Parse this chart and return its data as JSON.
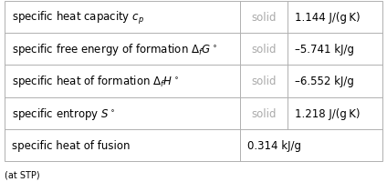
{
  "rows": [
    {
      "col1_plain": "specific heat capacity ",
      "col1_math": "$c_p$",
      "col2": "solid",
      "col3": "1.144 J/(g K)",
      "span_col2": false
    },
    {
      "col1_plain": "specific free energy of formation ",
      "col1_math": "$\\Delta_f G^\\circ$",
      "col2": "solid",
      "col3": "–5.741 kJ/g",
      "span_col2": false
    },
    {
      "col1_plain": "specific heat of formation ",
      "col1_math": "$\\Delta_f H^\\circ$",
      "col2": "solid",
      "col3": "–6.552 kJ/g",
      "span_col2": false
    },
    {
      "col1_plain": "specific entropy ",
      "col1_math": "$S^\\circ$",
      "col2": "solid",
      "col3": "1.218 J/(g K)",
      "span_col2": false
    },
    {
      "col1_plain": "specific heat of fusion",
      "col1_math": "",
      "col2": "0.314 kJ/g",
      "col3": "",
      "span_col2": true
    }
  ],
  "footer": "(at STP)",
  "background_color": "#ffffff",
  "border_color": "#b0b0b0",
  "text_color_main": "#000000",
  "text_color_dim": "#aaaaaa",
  "text_color_value": "#000000",
  "font_size_main": 8.5,
  "font_size_footer": 7.0
}
